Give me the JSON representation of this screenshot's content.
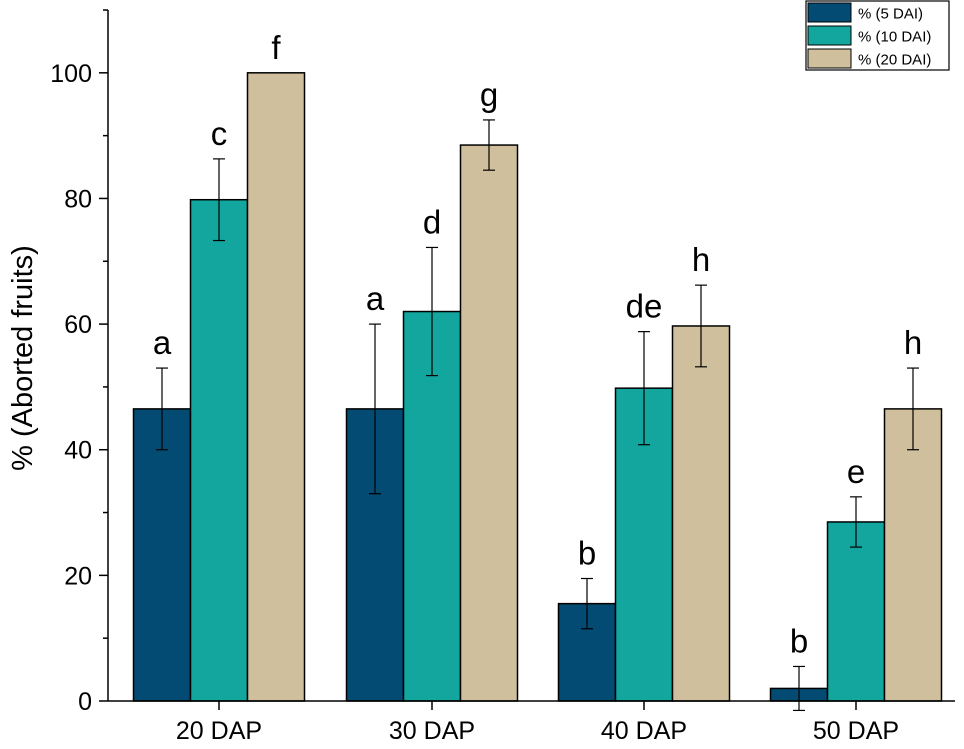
{
  "chart_data": {
    "type": "bar",
    "title": "",
    "xlabel": "",
    "ylabel": "% (Aborted fruits)",
    "ylim": [
      0,
      110
    ],
    "yticks": [
      0,
      20,
      40,
      60,
      80,
      100
    ],
    "categories": [
      "20 DAP",
      "30 DAP",
      "40 DAP",
      "50 DAP"
    ],
    "legend_position": "top-right",
    "series": [
      {
        "name": "% (5 DAI)",
        "color": "#034b72",
        "values": [
          46.5,
          46.5,
          15.5,
          2
        ],
        "errors": [
          6.5,
          13.5,
          4,
          3.5
        ],
        "letters": [
          "a",
          "a",
          "b",
          "b"
        ]
      },
      {
        "name": "% (10 DAI)",
        "color": "#13a69e",
        "values": [
          79.8,
          62,
          49.8,
          28.5
        ],
        "errors": [
          6.5,
          10.2,
          9,
          4
        ],
        "letters": [
          "c",
          "d",
          "de",
          "e"
        ]
      },
      {
        "name": "% (20 DAI)",
        "color": "#cfbf9c",
        "values": [
          100,
          88.5,
          59.7,
          46.5
        ],
        "errors": [
          0,
          4,
          6.5,
          6.5
        ],
        "letters": [
          "f",
          "g",
          "h",
          "h"
        ]
      }
    ]
  }
}
